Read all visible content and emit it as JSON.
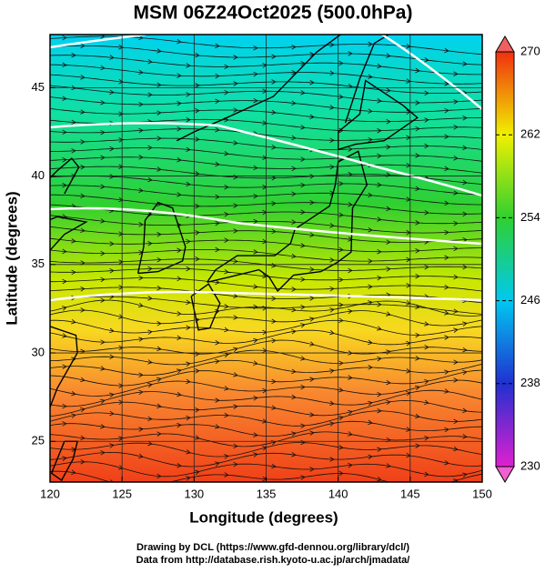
{
  "title": "MSM 06Z24Oct2025 (500.0hPa)",
  "map": {
    "xlabel": "Longitude (degrees)",
    "ylabel": "Latitude  (degrees)",
    "xlim": [
      120,
      150
    ],
    "ylim": [
      22.7,
      48
    ],
    "xticks": [
      120,
      125,
      130,
      135,
      140,
      145,
      150
    ],
    "yticks": [
      25,
      30,
      35,
      40,
      45
    ]
  },
  "colorbar": {
    "lim": [
      230,
      270
    ],
    "ticks": [
      230,
      238,
      246,
      254,
      262,
      270
    ],
    "colors": [
      "#e020d0",
      "#2030d0",
      "#00c8f0",
      "#30d030",
      "#f0f000",
      "#f03010"
    ]
  },
  "credits": [
    "Drawing by DCL (https://www.gfd-dennou.org/library/dcl/)",
    "Data from http://database.rish.kyoto-u.ac.jp/arch/jmadata/"
  ]
}
